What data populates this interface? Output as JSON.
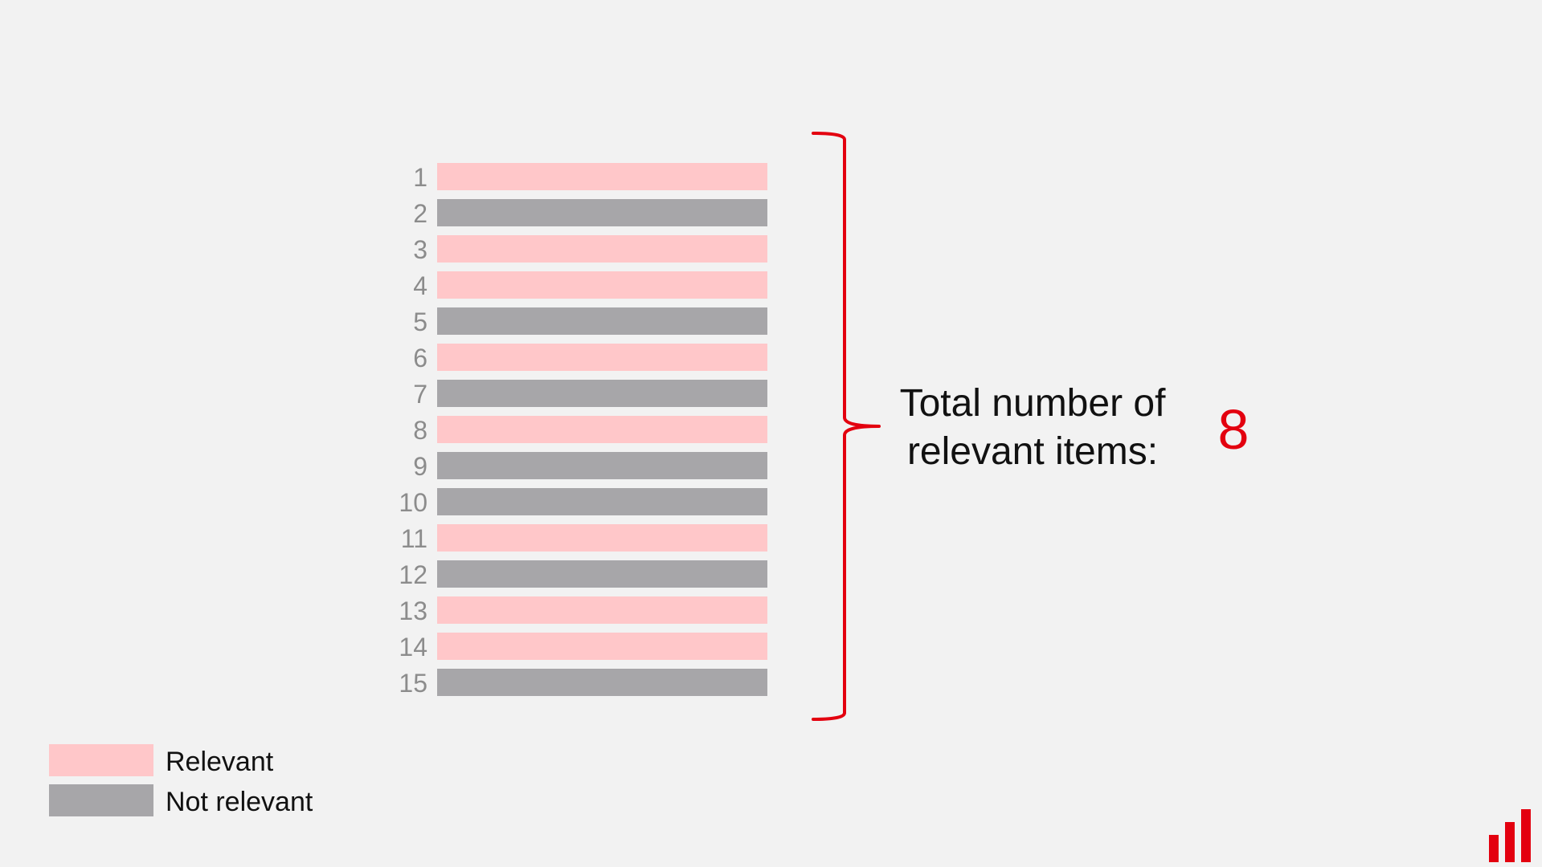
{
  "colors": {
    "background": "#f2f2f2",
    "relevant": "#ffc7c9",
    "not_relevant": "#a7a6a9",
    "accent": "#e3000f",
    "rank_text": "#8c8c8c"
  },
  "items": [
    {
      "rank": "1",
      "relevant": true
    },
    {
      "rank": "2",
      "relevant": false
    },
    {
      "rank": "3",
      "relevant": true
    },
    {
      "rank": "4",
      "relevant": true
    },
    {
      "rank": "5",
      "relevant": false
    },
    {
      "rank": "6",
      "relevant": true
    },
    {
      "rank": "7",
      "relevant": false
    },
    {
      "rank": "8",
      "relevant": true
    },
    {
      "rank": "9",
      "relevant": false
    },
    {
      "rank": "10",
      "relevant": false
    },
    {
      "rank": "11",
      "relevant": true
    },
    {
      "rank": "12",
      "relevant": false
    },
    {
      "rank": "13",
      "relevant": true
    },
    {
      "rank": "14",
      "relevant": true
    },
    {
      "rank": "15",
      "relevant": false
    }
  ],
  "summary": {
    "label_line1": "Total number of",
    "label_line2": "relevant items:",
    "value": "8"
  },
  "legend": {
    "relevant_label": "Relevant",
    "not_relevant_label": "Not relevant"
  },
  "logo": {
    "icon": "bar-chart-logo-icon"
  }
}
